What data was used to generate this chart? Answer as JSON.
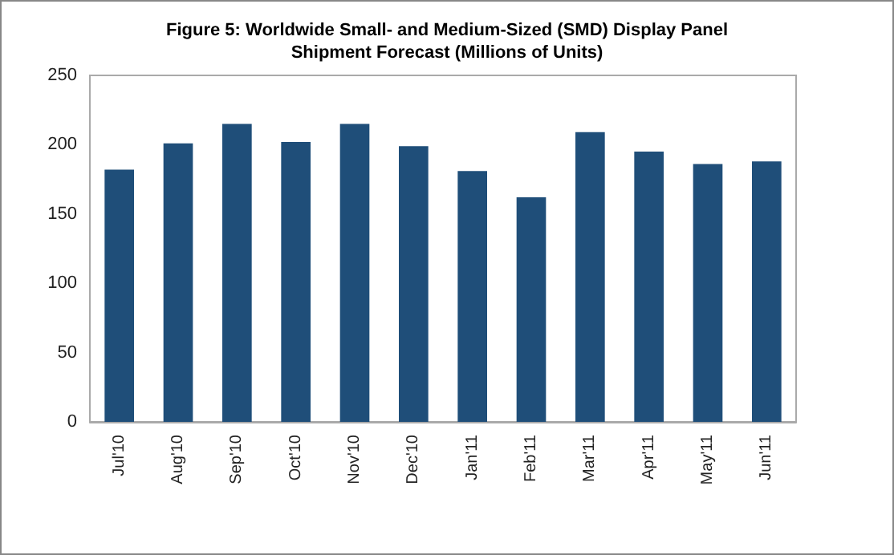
{
  "chart_data": {
    "type": "bar",
    "title": "Figure 5: Worldwide Small- and Medium-Sized (SMD) Display Panel\nShipment Forecast (Millions of Units)",
    "categories": [
      "Jul'10",
      "Aug'10",
      "Sep'10",
      "Oct'10",
      "Nov'10",
      "Dec'10",
      "Jan'11",
      "Feb'11",
      "Mar'11",
      "Apr'11",
      "May'11",
      "Jun'11"
    ],
    "values": [
      182,
      201,
      215,
      202,
      215,
      199,
      181,
      162,
      209,
      195,
      186,
      188
    ],
    "color": "#1f4e79",
    "ylim": [
      0,
      250
    ],
    "yticks": [
      0,
      50,
      100,
      150,
      200,
      250
    ],
    "grid": false
  }
}
